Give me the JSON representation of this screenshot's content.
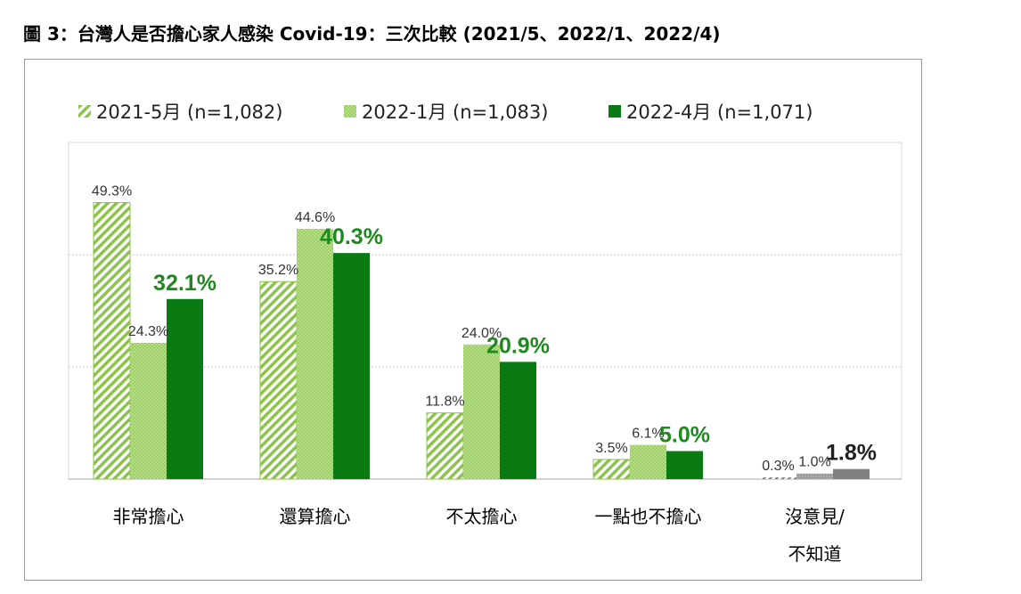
{
  "title": "圖 3：台灣人是否擔心家人感染 Covid-19：三次比較 (2021/5、2022/1、2022/4)",
  "colors": {
    "s2021_5": "#9acd4f",
    "s2022_1": "#a4d26a",
    "s2022_4": "#0a7a12",
    "nodata": "#808080",
    "highlight_label": "#1e8a1e"
  },
  "chart_data": {
    "type": "bar",
    "categories": [
      "非常擔心",
      "還算擔心",
      "不太擔心",
      "一點也不擔心",
      "沒意見/不知道"
    ],
    "series": [
      {
        "name": "2021-5月 (n=1,082)",
        "values": [
          49.3,
          35.2,
          11.8,
          3.5,
          0.3
        ],
        "labels": [
          "49.3%",
          "35.2%",
          "11.8%",
          "3.5%",
          "0.3%"
        ]
      },
      {
        "name": "2022-1月 (n=1,083)",
        "values": [
          24.3,
          44.6,
          24.0,
          6.1,
          1.0
        ],
        "labels": [
          "24.3%",
          "44.6%",
          "24.0%",
          "6.1%",
          "1.0%"
        ]
      },
      {
        "name": "2022-4月 (n=1,071)",
        "values": [
          32.1,
          40.3,
          20.9,
          5.0,
          1.8
        ],
        "labels": [
          "32.1%",
          "40.3%",
          "20.9%",
          "5.0%",
          "1.8%"
        ]
      }
    ],
    "ylim": [
      0,
      60
    ],
    "grid": true,
    "legend_position": "top"
  }
}
